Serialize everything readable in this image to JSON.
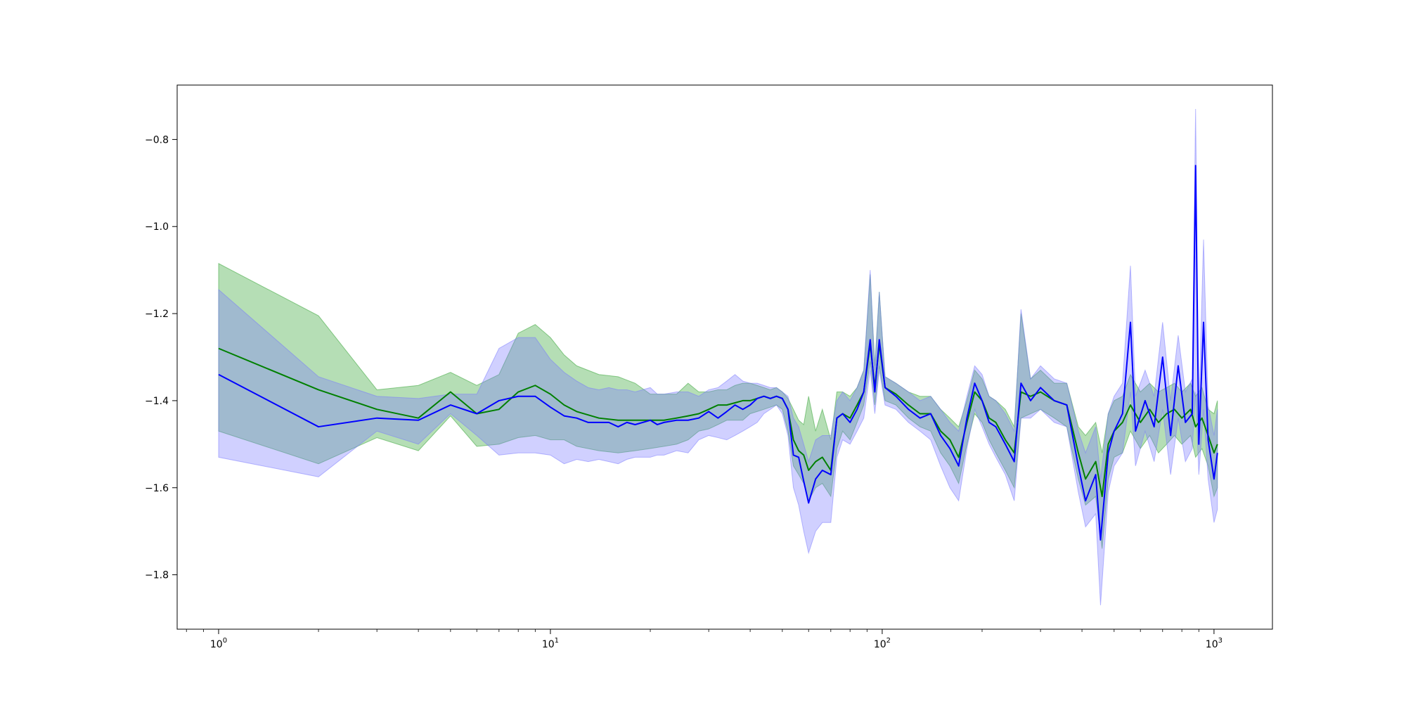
{
  "chart_data": {
    "type": "line",
    "title": "",
    "xlabel": "",
    "ylabel": "",
    "x_scale": "log",
    "xlim": [
      0.75,
      1500
    ],
    "ylim": [
      -1.925,
      -0.675
    ],
    "grid": false,
    "legend": "none",
    "x_ticks": [
      {
        "value": 1,
        "base": "10",
        "exp": "0"
      },
      {
        "value": 10,
        "base": "10",
        "exp": "1"
      },
      {
        "value": 100,
        "base": "10",
        "exp": "2"
      },
      {
        "value": 1000,
        "base": "10",
        "exp": "3"
      }
    ],
    "y_ticks": [
      {
        "value": -0.8,
        "label": "−0.8"
      },
      {
        "value": -1.0,
        "label": "−1.0"
      },
      {
        "value": -1.2,
        "label": "−1.2"
      },
      {
        "value": -1.4,
        "label": "−1.4"
      },
      {
        "value": -1.6,
        "label": "−1.6"
      },
      {
        "value": -1.8,
        "label": "−1.8"
      }
    ],
    "series": [
      {
        "color": "#008000",
        "band_color": "#2ca02c",
        "points": [
          [
            1,
            -1.28,
            -1.47,
            -1.085
          ],
          [
            2,
            -1.375,
            -1.545,
            -1.205
          ],
          [
            3,
            -1.42,
            -1.485,
            -1.375
          ],
          [
            4,
            -1.44,
            -1.515,
            -1.365
          ],
          [
            5,
            -1.38,
            -1.435,
            -1.335
          ],
          [
            6,
            -1.43,
            -1.505,
            -1.365
          ],
          [
            7,
            -1.42,
            -1.5,
            -1.34
          ],
          [
            8,
            -1.38,
            -1.485,
            -1.245
          ],
          [
            9,
            -1.365,
            -1.48,
            -1.225
          ],
          [
            10,
            -1.385,
            -1.49,
            -1.255
          ],
          [
            11,
            -1.41,
            -1.49,
            -1.295
          ],
          [
            12,
            -1.425,
            -1.505,
            -1.32
          ],
          [
            14,
            -1.44,
            -1.515,
            -1.34
          ],
          [
            16,
            -1.445,
            -1.52,
            -1.345
          ],
          [
            18,
            -1.445,
            -1.515,
            -1.36
          ],
          [
            20,
            -1.445,
            -1.51,
            -1.385
          ],
          [
            22,
            -1.445,
            -1.505,
            -1.385
          ],
          [
            24,
            -1.44,
            -1.5,
            -1.385
          ],
          [
            26,
            -1.435,
            -1.49,
            -1.36
          ],
          [
            28,
            -1.43,
            -1.47,
            -1.38
          ],
          [
            30,
            -1.42,
            -1.465,
            -1.38
          ],
          [
            32,
            -1.41,
            -1.455,
            -1.375
          ],
          [
            34,
            -1.41,
            -1.445,
            -1.375
          ],
          [
            36,
            -1.405,
            -1.445,
            -1.365
          ],
          [
            38,
            -1.4,
            -1.445,
            -1.36
          ],
          [
            40,
            -1.4,
            -1.43,
            -1.36
          ],
          [
            42,
            -1.395,
            -1.425,
            -1.365
          ],
          [
            44,
            -1.39,
            -1.42,
            -1.37
          ],
          [
            46,
            -1.395,
            -1.415,
            -1.375
          ],
          [
            48,
            -1.39,
            -1.41,
            -1.37
          ],
          [
            50,
            -1.395,
            -1.42,
            -1.38
          ],
          [
            52,
            -1.42,
            -1.47,
            -1.395
          ],
          [
            54,
            -1.49,
            -1.55,
            -1.42
          ],
          [
            56,
            -1.515,
            -1.57,
            -1.445
          ],
          [
            58,
            -1.525,
            -1.59,
            -1.455
          ],
          [
            60,
            -1.56,
            -1.63,
            -1.39
          ],
          [
            63,
            -1.54,
            -1.6,
            -1.47
          ],
          [
            66,
            -1.53,
            -1.59,
            -1.42
          ],
          [
            70,
            -1.56,
            -1.62,
            -1.49
          ],
          [
            73,
            -1.44,
            -1.51,
            -1.38
          ],
          [
            76,
            -1.43,
            -1.47,
            -1.38
          ],
          [
            80,
            -1.44,
            -1.49,
            -1.39
          ],
          [
            84,
            -1.41,
            -1.45,
            -1.37
          ],
          [
            88,
            -1.38,
            -1.41,
            -1.33
          ],
          [
            92,
            -1.27,
            -1.31,
            -1.11
          ],
          [
            95,
            -1.37,
            -1.41,
            -1.32
          ],
          [
            98,
            -1.27,
            -1.32,
            -1.15
          ],
          [
            102,
            -1.37,
            -1.4,
            -1.345
          ],
          [
            110,
            -1.385,
            -1.41,
            -1.36
          ],
          [
            120,
            -1.41,
            -1.44,
            -1.38
          ],
          [
            130,
            -1.43,
            -1.46,
            -1.39
          ],
          [
            140,
            -1.43,
            -1.47,
            -1.39
          ],
          [
            150,
            -1.47,
            -1.52,
            -1.42
          ],
          [
            160,
            -1.49,
            -1.55,
            -1.44
          ],
          [
            170,
            -1.53,
            -1.59,
            -1.46
          ],
          [
            180,
            -1.45,
            -1.5,
            -1.4
          ],
          [
            190,
            -1.38,
            -1.43,
            -1.33
          ],
          [
            200,
            -1.4,
            -1.45,
            -1.35
          ],
          [
            210,
            -1.44,
            -1.49,
            -1.39
          ],
          [
            220,
            -1.45,
            -1.52,
            -1.4
          ],
          [
            235,
            -1.49,
            -1.56,
            -1.42
          ],
          [
            250,
            -1.52,
            -1.6,
            -1.46
          ],
          [
            262,
            -1.38,
            -1.44,
            -1.2
          ],
          [
            280,
            -1.39,
            -1.43,
            -1.35
          ],
          [
            300,
            -1.38,
            -1.42,
            -1.33
          ],
          [
            330,
            -1.4,
            -1.44,
            -1.36
          ],
          [
            360,
            -1.41,
            -1.46,
            -1.36
          ],
          [
            390,
            -1.52,
            -1.58,
            -1.46
          ],
          [
            410,
            -1.58,
            -1.64,
            -1.48
          ],
          [
            440,
            -1.54,
            -1.62,
            -1.45
          ],
          [
            460,
            -1.62,
            -1.74,
            -1.52
          ],
          [
            480,
            -1.5,
            -1.58,
            -1.43
          ],
          [
            500,
            -1.47,
            -1.53,
            -1.4
          ],
          [
            530,
            -1.45,
            -1.52,
            -1.39
          ],
          [
            560,
            -1.41,
            -1.47,
            -1.34
          ],
          [
            600,
            -1.45,
            -1.51,
            -1.38
          ],
          [
            640,
            -1.42,
            -1.48,
            -1.36
          ],
          [
            680,
            -1.45,
            -1.52,
            -1.38
          ],
          [
            720,
            -1.43,
            -1.5,
            -1.37
          ],
          [
            760,
            -1.42,
            -1.48,
            -1.36
          ],
          [
            800,
            -1.44,
            -1.5,
            -1.38
          ],
          [
            850,
            -1.42,
            -1.48,
            -1.36
          ],
          [
            880,
            -1.46,
            -1.53,
            -1.39
          ],
          [
            920,
            -1.44,
            -1.51,
            -1.37
          ],
          [
            960,
            -1.48,
            -1.55,
            -1.42
          ],
          [
            1000,
            -1.52,
            -1.62,
            -1.43
          ],
          [
            1024,
            -1.5,
            -1.6,
            -1.4
          ]
        ]
      },
      {
        "color": "#0000ff",
        "band_color": "#7777ff",
        "points": [
          [
            1,
            -1.34,
            -1.53,
            -1.145
          ],
          [
            2,
            -1.46,
            -1.575,
            -1.345
          ],
          [
            3,
            -1.44,
            -1.47,
            -1.39
          ],
          [
            4,
            -1.445,
            -1.5,
            -1.395
          ],
          [
            5,
            -1.41,
            -1.43,
            -1.385
          ],
          [
            6,
            -1.43,
            -1.48,
            -1.385
          ],
          [
            7,
            -1.4,
            -1.525,
            -1.28
          ],
          [
            8,
            -1.39,
            -1.52,
            -1.255
          ],
          [
            9,
            -1.39,
            -1.52,
            -1.255
          ],
          [
            10,
            -1.415,
            -1.525,
            -1.305
          ],
          [
            11,
            -1.435,
            -1.545,
            -1.335
          ],
          [
            12,
            -1.44,
            -1.535,
            -1.355
          ],
          [
            13,
            -1.45,
            -1.54,
            -1.37
          ],
          [
            14,
            -1.45,
            -1.535,
            -1.375
          ],
          [
            15,
            -1.45,
            -1.54,
            -1.37
          ],
          [
            16,
            -1.46,
            -1.545,
            -1.375
          ],
          [
            17,
            -1.45,
            -1.535,
            -1.375
          ],
          [
            18,
            -1.455,
            -1.53,
            -1.38
          ],
          [
            20,
            -1.445,
            -1.53,
            -1.37
          ],
          [
            21,
            -1.455,
            -1.525,
            -1.385
          ],
          [
            22,
            -1.45,
            -1.525,
            -1.385
          ],
          [
            24,
            -1.445,
            -1.515,
            -1.38
          ],
          [
            26,
            -1.445,
            -1.52,
            -1.38
          ],
          [
            28,
            -1.44,
            -1.49,
            -1.39
          ],
          [
            30,
            -1.425,
            -1.48,
            -1.375
          ],
          [
            32,
            -1.44,
            -1.485,
            -1.37
          ],
          [
            34,
            -1.425,
            -1.49,
            -1.355
          ],
          [
            36,
            -1.41,
            -1.48,
            -1.34
          ],
          [
            38,
            -1.42,
            -1.47,
            -1.355
          ],
          [
            40,
            -1.41,
            -1.46,
            -1.36
          ],
          [
            42,
            -1.395,
            -1.45,
            -1.36
          ],
          [
            44,
            -1.39,
            -1.43,
            -1.365
          ],
          [
            46,
            -1.395,
            -1.42,
            -1.37
          ],
          [
            48,
            -1.39,
            -1.41,
            -1.37
          ],
          [
            50,
            -1.395,
            -1.43,
            -1.38
          ],
          [
            52,
            -1.42,
            -1.48,
            -1.39
          ],
          [
            54,
            -1.525,
            -1.6,
            -1.44
          ],
          [
            56,
            -1.53,
            -1.64,
            -1.46
          ],
          [
            58,
            -1.585,
            -1.7,
            -1.5
          ],
          [
            60,
            -1.635,
            -1.75,
            -1.54
          ],
          [
            63,
            -1.58,
            -1.7,
            -1.49
          ],
          [
            66,
            -1.56,
            -1.68,
            -1.48
          ],
          [
            70,
            -1.57,
            -1.68,
            -1.48
          ],
          [
            73,
            -1.44,
            -1.53,
            -1.4
          ],
          [
            76,
            -1.43,
            -1.49,
            -1.38
          ],
          [
            80,
            -1.45,
            -1.5,
            -1.4
          ],
          [
            84,
            -1.42,
            -1.47,
            -1.37
          ],
          [
            88,
            -1.38,
            -1.44,
            -1.33
          ],
          [
            92,
            -1.26,
            -1.33,
            -1.1
          ],
          [
            95,
            -1.38,
            -1.43,
            -1.33
          ],
          [
            98,
            -1.26,
            -1.33,
            -1.15
          ],
          [
            102,
            -1.37,
            -1.41,
            -1.345
          ],
          [
            110,
            -1.39,
            -1.42,
            -1.36
          ],
          [
            120,
            -1.42,
            -1.45,
            -1.38
          ],
          [
            130,
            -1.44,
            -1.47,
            -1.4
          ],
          [
            140,
            -1.43,
            -1.49,
            -1.39
          ],
          [
            150,
            -1.48,
            -1.55,
            -1.42
          ],
          [
            160,
            -1.51,
            -1.6,
            -1.45
          ],
          [
            170,
            -1.55,
            -1.63,
            -1.47
          ],
          [
            180,
            -1.44,
            -1.51,
            -1.39
          ],
          [
            190,
            -1.36,
            -1.42,
            -1.32
          ],
          [
            200,
            -1.4,
            -1.46,
            -1.34
          ],
          [
            210,
            -1.45,
            -1.5,
            -1.39
          ],
          [
            220,
            -1.46,
            -1.53,
            -1.4
          ],
          [
            235,
            -1.5,
            -1.57,
            -1.43
          ],
          [
            250,
            -1.54,
            -1.63,
            -1.47
          ],
          [
            262,
            -1.36,
            -1.44,
            -1.19
          ],
          [
            280,
            -1.4,
            -1.44,
            -1.35
          ],
          [
            300,
            -1.37,
            -1.42,
            -1.32
          ],
          [
            330,
            -1.4,
            -1.45,
            -1.35
          ],
          [
            360,
            -1.41,
            -1.46,
            -1.36
          ],
          [
            390,
            -1.55,
            -1.61,
            -1.47
          ],
          [
            410,
            -1.63,
            -1.69,
            -1.52
          ],
          [
            440,
            -1.57,
            -1.66,
            -1.46
          ],
          [
            455,
            -1.72,
            -1.87,
            -1.58
          ],
          [
            480,
            -1.52,
            -1.61,
            -1.43
          ],
          [
            500,
            -1.47,
            -1.55,
            -1.39
          ],
          [
            530,
            -1.43,
            -1.52,
            -1.36
          ],
          [
            560,
            -1.22,
            -1.38,
            -1.09
          ],
          [
            580,
            -1.47,
            -1.55,
            -1.39
          ],
          [
            620,
            -1.4,
            -1.47,
            -1.33
          ],
          [
            660,
            -1.46,
            -1.54,
            -1.39
          ],
          [
            700,
            -1.3,
            -1.42,
            -1.22
          ],
          [
            740,
            -1.48,
            -1.57,
            -1.4
          ],
          [
            780,
            -1.32,
            -1.44,
            -1.25
          ],
          [
            820,
            -1.45,
            -1.54,
            -1.38
          ],
          [
            860,
            -1.43,
            -1.51,
            -1.35
          ],
          [
            880,
            -0.86,
            -1.38,
            -0.73
          ],
          [
            900,
            -1.5,
            -1.57,
            -1.42
          ],
          [
            930,
            -1.22,
            -1.42,
            -1.03
          ],
          [
            960,
            -1.49,
            -1.58,
            -1.41
          ],
          [
            1000,
            -1.58,
            -1.68,
            -1.48
          ],
          [
            1024,
            -1.52,
            -1.65,
            -1.42
          ]
        ]
      }
    ]
  }
}
